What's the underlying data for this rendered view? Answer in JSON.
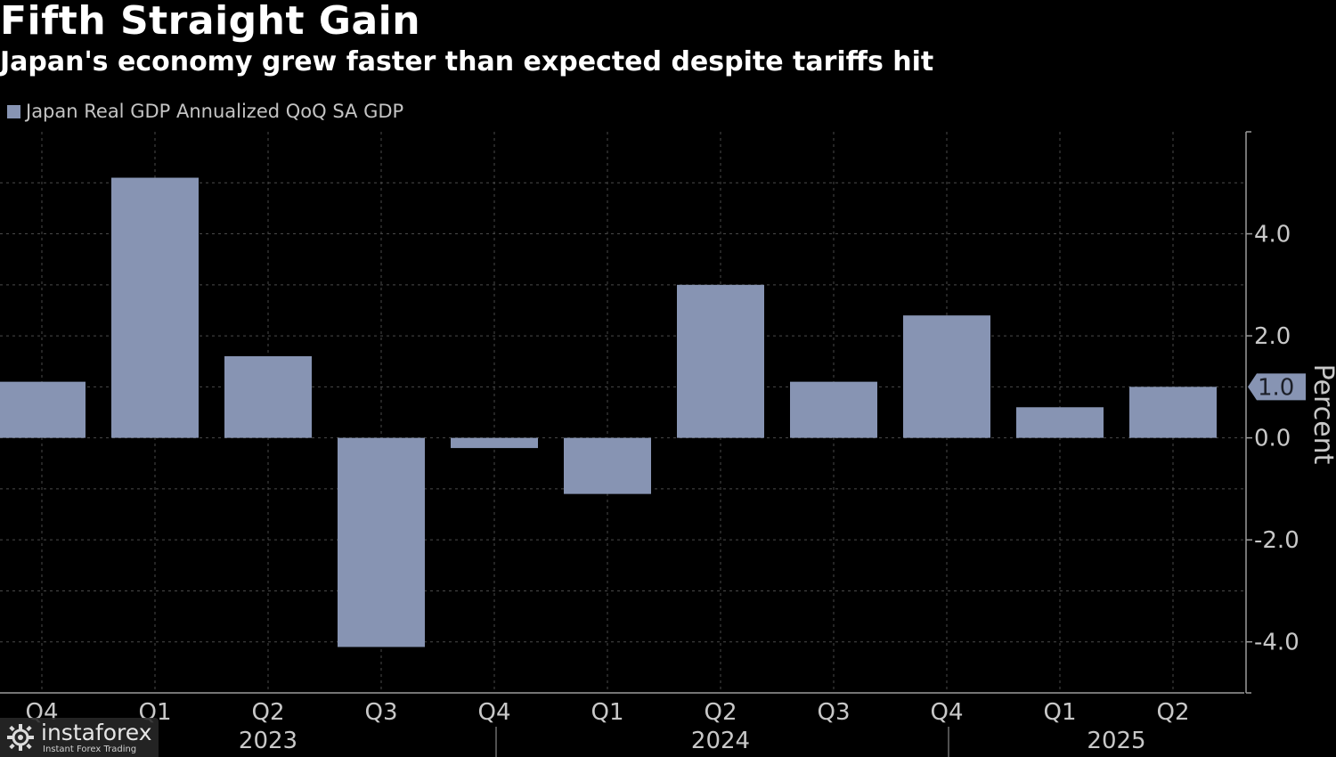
{
  "header": {
    "title": "Fifth Straight Gain",
    "subtitle": "Japan's economy grew faster than expected despite tariffs hit"
  },
  "legend": {
    "label": "Japan Real GDP Annualized QoQ SA GDP"
  },
  "chart_data": {
    "type": "bar",
    "title": "Fifth Straight Gain",
    "subtitle": "Japan's economy grew faster than expected despite tariffs hit",
    "categories": [
      "Q4",
      "Q1",
      "Q2",
      "Q3",
      "Q4",
      "Q1",
      "Q2",
      "Q3",
      "Q4",
      "Q1",
      "Q2"
    ],
    "year_labels": [
      {
        "label": "2023",
        "category_index": 2
      },
      {
        "label": "2024",
        "category_index": 6
      },
      {
        "label": "2025",
        "category_index": 9.5
      }
    ],
    "series": [
      {
        "name": "Japan Real GDP Annualized QoQ SA GDP",
        "color": "#8794b3",
        "values": [
          1.1,
          5.1,
          1.6,
          -4.1,
          -0.2,
          -1.1,
          3.0,
          1.1,
          2.4,
          0.6,
          1.0
        ]
      }
    ],
    "ylabel": "Percent",
    "y_axis_side": "right",
    "ylim": [
      -5.0,
      6.0
    ],
    "yticks": [
      -4.0,
      -2.0,
      0.0,
      2.0,
      4.0
    ],
    "ytick_labels": [
      "-4.0",
      "-2.0",
      "0.0",
      "2.0",
      "4.0"
    ],
    "latest_value_label": "1.0",
    "grid": true,
    "legend_position": "top-left"
  },
  "watermark": {
    "brand": "instaforex",
    "tagline": "Instant Forex Trading"
  },
  "colors": {
    "background": "#000000",
    "bar": "#8794b3",
    "text": "#ffffff",
    "axis_text": "#c8c8c8",
    "grid": "#4a4a4a"
  },
  "icons": {
    "legend": "legend-swatch",
    "watermark": "gear-logo-icon"
  }
}
